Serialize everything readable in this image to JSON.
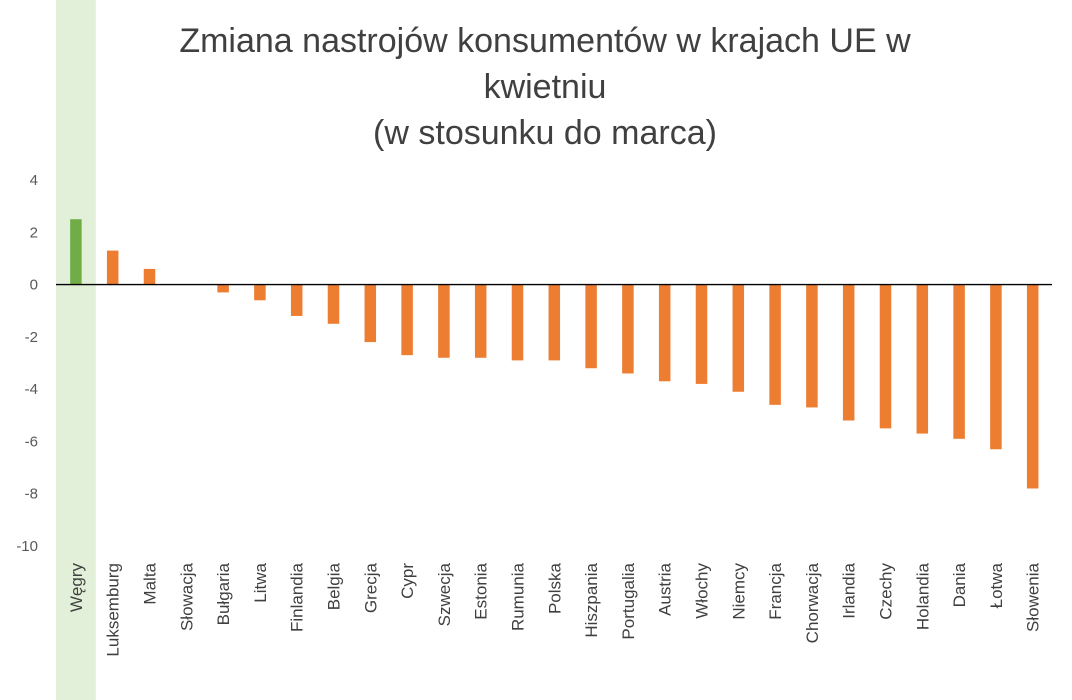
{
  "chart_data": {
    "type": "bar",
    "title_lines": [
      "Zmiana nastrojów konsumentów w krajach UE w",
      "kwietniu",
      "(w stosunku do marca)"
    ],
    "categories": [
      "Węgry",
      "Luksemburg",
      "Malta",
      "Słowacja",
      "Bułgaria",
      "Litwa",
      "Finlandia",
      "Belgia",
      "Grecja",
      "Cypr",
      "Szwecja",
      "Estonia",
      "Rumunia",
      "Polska",
      "Hiszpania",
      "Portugalia",
      "Austria",
      "Włochy",
      "Niemcy",
      "Francja",
      "Chorwacja",
      "Irlandia",
      "Czechy",
      "Holandia",
      "Dania",
      "Łotwa",
      "Słowenia"
    ],
    "values": [
      2.5,
      1.3,
      0.6,
      0.0,
      -0.3,
      -0.6,
      -1.2,
      -1.5,
      -2.2,
      -2.7,
      -2.8,
      -2.8,
      -2.9,
      -2.9,
      -3.2,
      -3.4,
      -3.7,
      -3.8,
      -4.1,
      -4.6,
      -4.7,
      -5.2,
      -5.5,
      -5.7,
      -5.9,
      -6.3,
      -7.8
    ],
    "ylim": [
      -10,
      4
    ],
    "yticks": [
      4,
      2,
      0,
      -2,
      -4,
      -6,
      -8,
      -10
    ],
    "xlabel": "",
    "ylabel": "",
    "highlight_index": 0,
    "colors": {
      "default_bar": "#ED7D31",
      "highlight_bar": "#70AD47",
      "highlight_band": "#E2F0D9",
      "axis_line": "#000000",
      "highlight_label": "#548235"
    }
  }
}
